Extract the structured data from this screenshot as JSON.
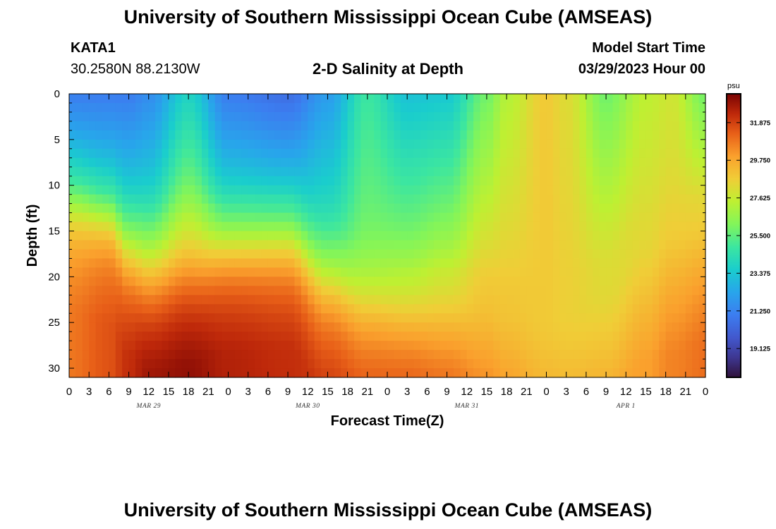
{
  "header": {
    "title": "University of Southern Mississippi Ocean Cube (AMSEAS)",
    "station_id": "KATA1",
    "coordinates": "30.2580N  88.2130W",
    "plot_title": "2-D Salinity at Depth",
    "model_start_label": "Model Start Time",
    "model_start_value": "03/29/2023 Hour 00"
  },
  "footer": {
    "title": "University of Southern Mississippi Ocean Cube (AMSEAS)"
  },
  "chart_data": {
    "type": "heatmap",
    "title": "2-D Salinity at Depth",
    "xlabel": "Forecast Time(Z)",
    "ylabel": "Depth (ft)",
    "x_tick_labels": [
      "0",
      "3",
      "6",
      "9",
      "12",
      "15",
      "18",
      "21",
      "0",
      "3",
      "6",
      "9",
      "12",
      "15",
      "18",
      "21",
      "0",
      "3",
      "6",
      "9",
      "12",
      "15",
      "18",
      "21",
      "0",
      "3",
      "6",
      "9",
      "12",
      "15",
      "18",
      "21",
      "0"
    ],
    "x_date_labels": [
      {
        "label": "MAR 29",
        "hour": 12
      },
      {
        "label": "MAR 30",
        "hour": 36
      },
      {
        "label": "MAR 31",
        "hour": 60
      },
      {
        "label": "APR 1",
        "hour": 84
      }
    ],
    "xlim_hours": [
      0,
      96
    ],
    "y_ticks": [
      0,
      5,
      10,
      15,
      20,
      25,
      30
    ],
    "ylim": [
      0,
      31
    ],
    "colorbar": {
      "unit": "psu",
      "range": [
        17.5,
        33.5
      ],
      "tick_labels": [
        "31.875",
        "29.750",
        "27.625",
        "25.500",
        "23.375",
        "21.250",
        "19.125"
      ],
      "tick_values": [
        31.875,
        29.75,
        27.625,
        25.5,
        23.375,
        21.25,
        19.125
      ]
    },
    "profiles": [
      {
        "hour": 0,
        "top": 21.0,
        "mid": 23.0,
        "thermocline_ft": 11.5,
        "width_ft": 2.2,
        "bottom": 30.8
      },
      {
        "hour": 6,
        "top": 21.0,
        "mid": 23.2,
        "thermocline_ft": 13.0,
        "width_ft": 2.0,
        "bottom": 31.5
      },
      {
        "hour": 9,
        "top": 21.0,
        "mid": 23.6,
        "thermocline_ft": 16.5,
        "width_ft": 2.5,
        "bottom": 32.3
      },
      {
        "hour": 12,
        "top": 21.5,
        "mid": 23.8,
        "thermocline_ft": 18.0,
        "width_ft": 3.0,
        "bottom": 33.0
      },
      {
        "hour": 18,
        "top": 23.8,
        "mid": 26.0,
        "thermocline_ft": 17.5,
        "width_ft": 3.0,
        "bottom": 33.2
      },
      {
        "hour": 24,
        "top": 21.0,
        "mid": 23.6,
        "thermocline_ft": 16.0,
        "width_ft": 2.5,
        "bottom": 32.6
      },
      {
        "hour": 33,
        "top": 20.5,
        "mid": 23.2,
        "thermocline_ft": 15.5,
        "width_ft": 2.5,
        "bottom": 32.3
      },
      {
        "hour": 39,
        "top": 22.0,
        "mid": 24.5,
        "thermocline_ft": 20.0,
        "width_ft": 2.5,
        "bottom": 32.0
      },
      {
        "hour": 45,
        "top": 24.8,
        "mid": 26.0,
        "thermocline_ft": 22.5,
        "width_ft": 2.5,
        "bottom": 31.7
      },
      {
        "hour": 51,
        "top": 23.2,
        "mid": 26.5,
        "thermocline_ft": 23.5,
        "width_ft": 2.5,
        "bottom": 31.8
      },
      {
        "hour": 57,
        "top": 23.4,
        "mid": 27.0,
        "thermocline_ft": 23.5,
        "width_ft": 3.0,
        "bottom": 31.6
      },
      {
        "hour": 63,
        "top": 25.8,
        "mid": 28.4,
        "thermocline_ft": 24.0,
        "width_ft": 3.5,
        "bottom": 31.0
      },
      {
        "hour": 66,
        "top": 27.2,
        "mid": 28.6,
        "thermocline_ft": 24.5,
        "width_ft": 3.5,
        "bottom": 30.6
      },
      {
        "hour": 72,
        "top": 28.8,
        "mid": 28.8,
        "thermocline_ft": 25.0,
        "width_ft": 3.5,
        "bottom": 30.0
      },
      {
        "hour": 75,
        "top": 28.2,
        "mid": 28.6,
        "thermocline_ft": 24.0,
        "width_ft": 3.5,
        "bottom": 29.8
      },
      {
        "hour": 81,
        "top": 25.8,
        "mid": 28.0,
        "thermocline_ft": 22.0,
        "width_ft": 3.5,
        "bottom": 29.8
      },
      {
        "hour": 87,
        "top": 27.4,
        "mid": 28.0,
        "thermocline_ft": 17.0,
        "width_ft": 3.5,
        "bottom": 30.0
      },
      {
        "hour": 91,
        "top": 27.8,
        "mid": 28.2,
        "thermocline_ft": 16.0,
        "width_ft": 3.5,
        "bottom": 30.6
      },
      {
        "hour": 96,
        "top": 25.8,
        "mid": 27.8,
        "thermocline_ft": 15.0,
        "width_ft": 3.5,
        "bottom": 31.0
      }
    ]
  }
}
